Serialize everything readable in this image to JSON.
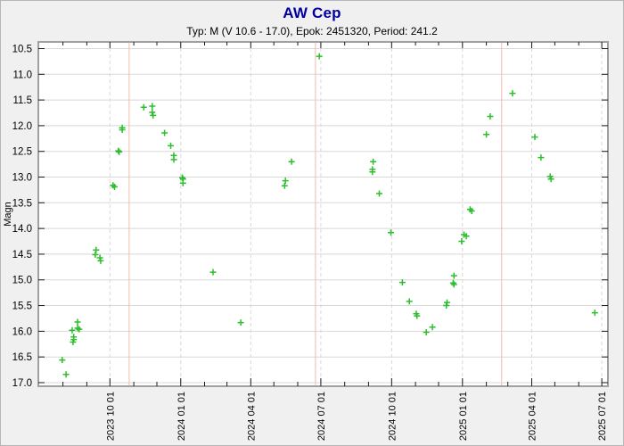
{
  "header": {
    "title": "AW Cep",
    "subtitle": "Typ: M (V 10.6 - 17.0), Epok: 2451320, Period: 241.2"
  },
  "chart_data": {
    "type": "scatter",
    "title": "AW Cep",
    "subtitle": "Typ: M (V 10.6 - 17.0), Epok: 2451320, Period: 241.2",
    "xlabel": "",
    "ylabel": "Magn",
    "y_axis_inverted": true,
    "ylim": [
      10.37,
      17.07
    ],
    "y_ticks": [
      10.5,
      11.0,
      11.5,
      12.0,
      12.5,
      13.0,
      13.5,
      14.0,
      14.5,
      15.0,
      15.5,
      16.0,
      16.5,
      17.0
    ],
    "xlim": [
      "2023-06-30",
      "2025-07-09"
    ],
    "x_ticks": [
      {
        "date": "2023-10-01",
        "label": "2023 10 01"
      },
      {
        "date": "2024-01-01",
        "label": "2024 01 01"
      },
      {
        "date": "2024-04-01",
        "label": "2024 04 01"
      },
      {
        "date": "2024-07-01",
        "label": "2024 07 01"
      },
      {
        "date": "2024-10-01",
        "label": "2024 10 01"
      },
      {
        "date": "2025-01-01",
        "label": "2025 01 01"
      },
      {
        "date": "2025-04-01",
        "label": "2025 04 01"
      },
      {
        "date": "2025-07-01",
        "label": "2025 07 01"
      }
    ],
    "minor_tick_interval": "month",
    "grid": true,
    "legend": "none",
    "marker": "plus",
    "colors": {
      "marker": "#2dbe2d",
      "grid": "#d8d8d8",
      "epoch_line": "#f3baac",
      "axis_border": "#a0a0a0",
      "tick": "#1a1a1a",
      "title": "#0000a0",
      "background": "#f0f0f0",
      "plot_background": "#ffffff"
    },
    "epoch_lines": {
      "color": "#f3baac",
      "dates": [
        "2023-10-26",
        "2024-06-24",
        "2025-02-21"
      ]
    },
    "points": [
      [
        "2023-07-31",
        16.56
      ],
      [
        "2023-08-05",
        16.84
      ],
      [
        "2023-08-13",
        15.98
      ],
      [
        "2023-08-14",
        16.21
      ],
      [
        "2023-08-15",
        16.16
      ],
      [
        "2023-08-15",
        16.11
      ],
      [
        "2023-08-20",
        15.82
      ],
      [
        "2023-08-20",
        15.94
      ],
      [
        "2023-08-22",
        15.96
      ],
      [
        "2023-09-12",
        14.51
      ],
      [
        "2023-09-13",
        14.42
      ],
      [
        "2023-09-18",
        14.57
      ],
      [
        "2023-09-19",
        14.63
      ],
      [
        "2023-10-05",
        13.16
      ],
      [
        "2023-10-07",
        13.19
      ],
      [
        "2023-10-12",
        12.49
      ],
      [
        "2023-10-13",
        12.51
      ],
      [
        "2023-10-17",
        12.04
      ],
      [
        "2023-10-17",
        12.08
      ],
      [
        "2023-11-14",
        11.64
      ],
      [
        "2023-11-25",
        11.62
      ],
      [
        "2023-11-25",
        11.74
      ],
      [
        "2023-11-26",
        11.8
      ],
      [
        "2023-12-11",
        12.14
      ],
      [
        "2023-12-19",
        12.39
      ],
      [
        "2023-12-23",
        12.58
      ],
      [
        "2023-12-23",
        12.66
      ],
      [
        "2024-01-03",
        13.01
      ],
      [
        "2024-01-04",
        13.04
      ],
      [
        "2024-01-04",
        13.12
      ],
      [
        "2024-02-12",
        14.85
      ],
      [
        "2024-03-19",
        15.83
      ],
      [
        "2024-05-15",
        13.17
      ],
      [
        "2024-05-16",
        13.07
      ],
      [
        "2024-05-24",
        12.7
      ],
      [
        "2024-06-29",
        10.65
      ],
      [
        "2024-09-06",
        12.85
      ],
      [
        "2024-09-06",
        12.9
      ],
      [
        "2024-09-07",
        12.7
      ],
      [
        "2024-09-15",
        13.32
      ],
      [
        "2024-09-30",
        14.08
      ],
      [
        "2024-10-15",
        15.05
      ],
      [
        "2024-10-24",
        15.42
      ],
      [
        "2024-11-02",
        15.66
      ],
      [
        "2024-11-03",
        15.7
      ],
      [
        "2024-11-15",
        16.02
      ],
      [
        "2024-11-23",
        15.92
      ],
      [
        "2024-12-11",
        15.5
      ],
      [
        "2024-12-12",
        15.44
      ],
      [
        "2024-12-20",
        15.06
      ],
      [
        "2024-12-21",
        15.09
      ],
      [
        "2024-12-21",
        14.92
      ],
      [
        "2024-12-31",
        14.25
      ],
      [
        "2025-01-03",
        14.12
      ],
      [
        "2025-01-06",
        14.15
      ],
      [
        "2025-01-11",
        13.63
      ],
      [
        "2025-01-13",
        13.66
      ],
      [
        "2025-02-01",
        12.17
      ],
      [
        "2025-02-06",
        11.82
      ],
      [
        "2025-03-07",
        11.37
      ],
      [
        "2025-04-05",
        12.22
      ],
      [
        "2025-04-13",
        12.62
      ],
      [
        "2025-04-25",
        12.99
      ],
      [
        "2025-04-26",
        13.04
      ],
      [
        "2025-06-22",
        15.64
      ]
    ]
  }
}
